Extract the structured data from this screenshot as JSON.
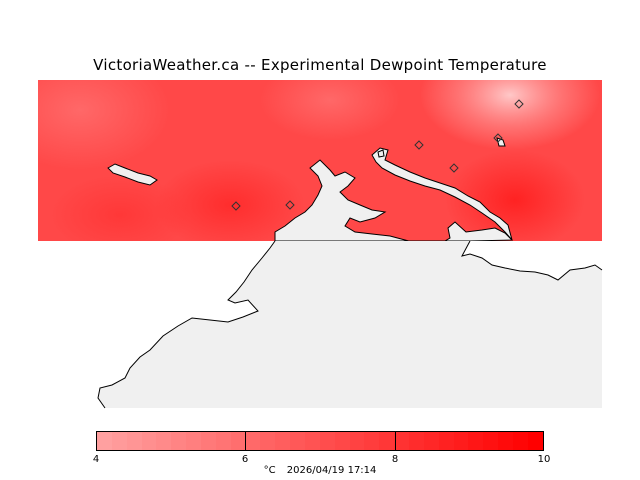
{
  "title": "VictoriaWeather.ca -- Experimental Dewpoint Temperature",
  "legend": {
    "min": 4,
    "max": 10,
    "ticks": [
      "4",
      "6",
      "8",
      "10"
    ],
    "unit": "°C",
    "timestamp": "2026/04/19 17:14",
    "color_low": "#ffa0a0",
    "color_high": "#ff0000"
  },
  "map": {
    "land_color": "#f0f0f0",
    "coast_color": "#000000",
    "field_color": "#ff4848",
    "station_marker": "diamond-icon"
  }
}
